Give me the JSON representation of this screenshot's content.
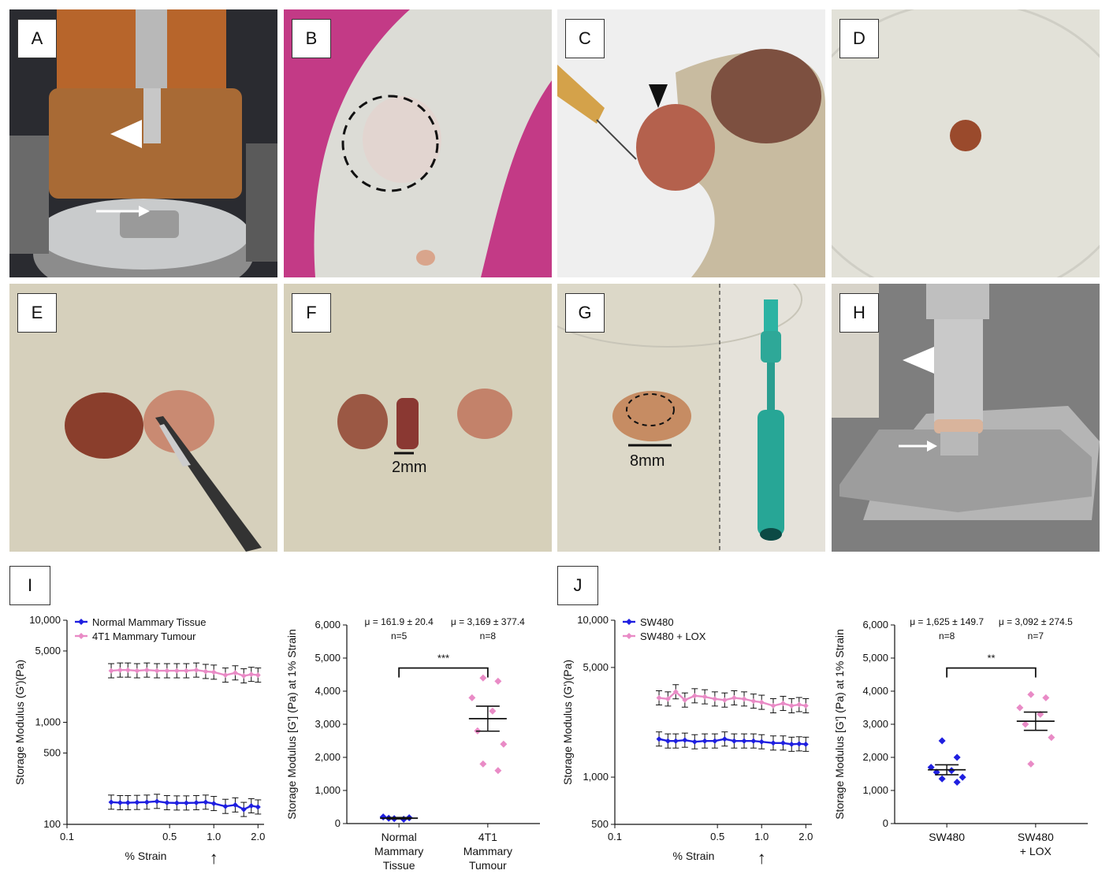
{
  "panels": {
    "A": {
      "label": "A"
    },
    "B": {
      "label": "B"
    },
    "C": {
      "label": "C"
    },
    "D": {
      "label": "D"
    },
    "E": {
      "label": "E"
    },
    "F": {
      "label": "F",
      "scale": "2mm"
    },
    "G": {
      "label": "G",
      "scale": "8mm"
    },
    "H": {
      "label": "H"
    },
    "I": {
      "label": "I"
    },
    "J": {
      "label": "J"
    }
  },
  "colors": {
    "blue": "#1f1fe0",
    "pink": "#e98bc6"
  },
  "chart_data": [
    {
      "id": "I-left",
      "type": "line",
      "xlabel": "% Strain",
      "ylabel": "Storage Modulus (G')(Pa)",
      "xscale": "log",
      "yscale": "log",
      "xlim": [
        0.1,
        2.2
      ],
      "ylim": [
        100,
        10000
      ],
      "xticks": [
        "0.1",
        "0.5",
        "1.0",
        "2.0"
      ],
      "yticks": [
        "100",
        "500",
        "1,000",
        "5,000",
        "10,000"
      ],
      "annotation": "↑",
      "x": [
        0.2,
        0.23,
        0.26,
        0.3,
        0.35,
        0.41,
        0.48,
        0.56,
        0.65,
        0.76,
        0.88,
        1.0,
        1.2,
        1.4,
        1.6,
        1.8,
        2.0
      ],
      "series": [
        {
          "name": "Normal Mammary Tissue",
          "color": "#1f1fe0",
          "values": [
            165,
            163,
            163,
            164,
            165,
            168,
            163,
            162,
            162,
            163,
            165,
            160,
            150,
            155,
            140,
            152,
            148
          ]
        },
        {
          "name": "4T1 Mammary Tumour",
          "color": "#e98bc6",
          "values": [
            3200,
            3250,
            3250,
            3200,
            3250,
            3200,
            3200,
            3200,
            3200,
            3250,
            3150,
            3100,
            2900,
            3050,
            2850,
            2950,
            2900
          ]
        }
      ]
    },
    {
      "id": "I-right",
      "type": "scatter",
      "ylabel": "Storage Modulus [G'] (Pa) at 1% Strain",
      "ylim": [
        0,
        6000
      ],
      "yticks": [
        "0",
        "1,000",
        "2,000",
        "3,000",
        "4,000",
        "5,000",
        "6,000"
      ],
      "categories": [
        "Normal Mammary Tissue",
        "4T1 Mammary Tumour"
      ],
      "category_lines": [
        [
          "Normal",
          "Mammary",
          "Tissue"
        ],
        [
          "4T1",
          "Mammary",
          "Tumour"
        ]
      ],
      "stats": [
        [
          "μ = 161.9 ± 20.4",
          "n=5"
        ],
        [
          "μ = 3,169 ± 377.4",
          "n=8"
        ]
      ],
      "significance": "***",
      "means": [
        161.9,
        3169
      ],
      "sem": [
        20.4,
        377.4
      ],
      "points": [
        {
          "group": 0,
          "color": "#1f1fe0",
          "values": [
            150,
            175,
            200,
            130,
            160
          ]
        },
        {
          "group": 1,
          "color": "#e98bc6",
          "values": [
            4400,
            4300,
            3800,
            3400,
            2800,
            2400,
            1800,
            1600
          ]
        }
      ]
    },
    {
      "id": "J-left",
      "type": "line",
      "xlabel": "% Strain",
      "ylabel": "Storage Modulus (G')(Pa)",
      "xscale": "log",
      "yscale": "log",
      "xlim": [
        0.1,
        2.2
      ],
      "ylim": [
        500,
        10000
      ],
      "xticks": [
        "0.1",
        "0.5",
        "1.0",
        "2.0"
      ],
      "yticks": [
        "500",
        "1,000",
        "5,000",
        "10,000"
      ],
      "annotation": "↑",
      "x": [
        0.2,
        0.23,
        0.26,
        0.3,
        0.35,
        0.41,
        0.48,
        0.56,
        0.65,
        0.76,
        0.88,
        1.0,
        1.2,
        1.4,
        1.6,
        1.8,
        2.0
      ],
      "series": [
        {
          "name": "SW480",
          "color": "#1f1fe0",
          "values": [
            1750,
            1700,
            1700,
            1720,
            1680,
            1700,
            1700,
            1750,
            1700,
            1700,
            1700,
            1680,
            1650,
            1650,
            1620,
            1630,
            1620
          ]
        },
        {
          "name": "SW480 + LOX",
          "color": "#e98bc6",
          "values": [
            3200,
            3150,
            3500,
            3100,
            3300,
            3250,
            3150,
            3100,
            3200,
            3150,
            3050,
            3000,
            2850,
            2950,
            2850,
            2900,
            2850
          ]
        }
      ]
    },
    {
      "id": "J-right",
      "type": "scatter",
      "ylabel": "Storage Modulus [G'] (Pa) at 1% Strain",
      "ylim": [
        0,
        6000
      ],
      "yticks": [
        "0",
        "1,000",
        "2,000",
        "3,000",
        "4,000",
        "5,000",
        "6,000"
      ],
      "categories": [
        "SW480",
        "SW480 + LOX"
      ],
      "category_lines": [
        [
          "SW480"
        ],
        [
          "SW480",
          "+ LOX"
        ]
      ],
      "stats": [
        [
          "μ = 1,625 ± 149.7",
          "n=8"
        ],
        [
          "μ = 3,092 ± 274.5",
          "n=7"
        ]
      ],
      "significance": "**",
      "means": [
        1625,
        3092
      ],
      "sem": [
        149.7,
        274.5
      ],
      "points": [
        {
          "group": 0,
          "color": "#1f1fe0",
          "values": [
            2500,
            2000,
            1700,
            1600,
            1550,
            1400,
            1350,
            1250
          ]
        },
        {
          "group": 1,
          "color": "#e98bc6",
          "values": [
            3900,
            3800,
            3500,
            3300,
            3000,
            2600,
            1800
          ]
        }
      ]
    }
  ]
}
